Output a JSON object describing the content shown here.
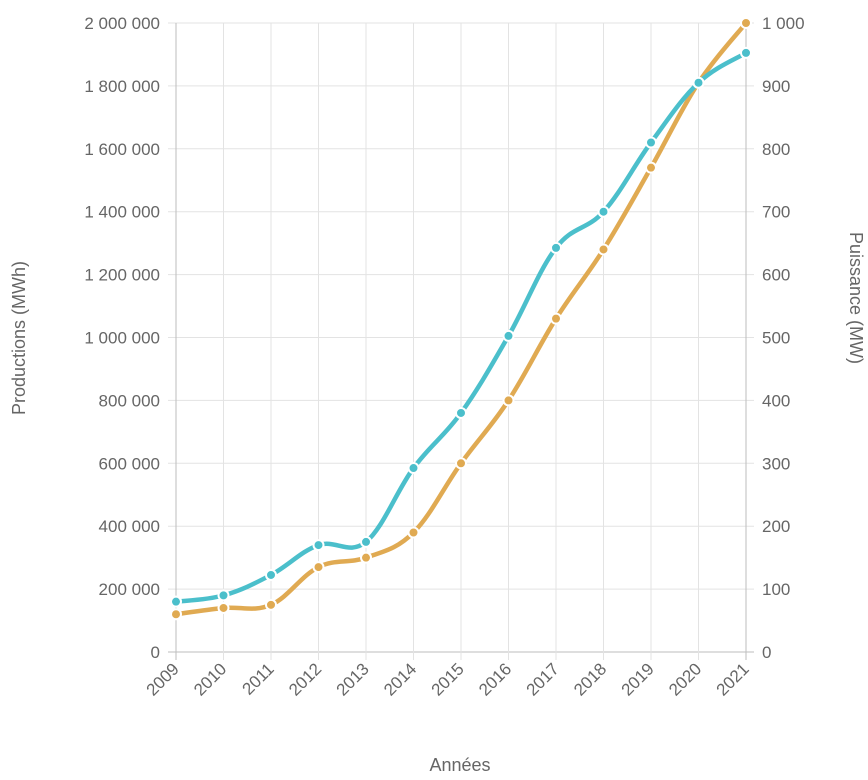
{
  "chart_data": {
    "type": "line",
    "categories": [
      "2009",
      "2010",
      "2011",
      "2012",
      "2013",
      "2014",
      "2015",
      "2016",
      "2017",
      "2018",
      "2019",
      "2020",
      "2021"
    ],
    "xlabel": "Années",
    "ylabel_left": "Productions (MWh)",
    "ylabel_right": "Puissance (MW)",
    "y_left": {
      "range": [
        0,
        2000000
      ],
      "ticks": [
        0,
        200000,
        400000,
        600000,
        800000,
        1000000,
        1200000,
        1400000,
        1600000,
        1800000,
        2000000
      ],
      "tick_labels": [
        "0",
        "200 000",
        "400 000",
        "600 000",
        "800 000",
        "1 000 000",
        "1 200 000",
        "1 400 000",
        "1 600 000",
        "1 800 000",
        "2 000 000"
      ]
    },
    "y_right": {
      "range": [
        0,
        1000
      ],
      "ticks": [
        0,
        100,
        200,
        300,
        400,
        500,
        600,
        700,
        800,
        900,
        1000
      ],
      "tick_labels": [
        "0",
        "100",
        "200",
        "300",
        "400",
        "500",
        "600",
        "700",
        "800",
        "900",
        "1 000"
      ]
    },
    "grid": true,
    "series": [
      {
        "axis": "left",
        "color": "#4bbfcb",
        "values": [
          160000,
          180000,
          245000,
          340000,
          350000,
          585000,
          760000,
          1005000,
          1285000,
          1400000,
          1620000,
          1810000,
          1905000
        ]
      },
      {
        "axis": "right",
        "color": "#e0aa52",
        "values": [
          60,
          70,
          75,
          135,
          150,
          190,
          300,
          400,
          530,
          640,
          770,
          905,
          1000
        ]
      }
    ]
  }
}
